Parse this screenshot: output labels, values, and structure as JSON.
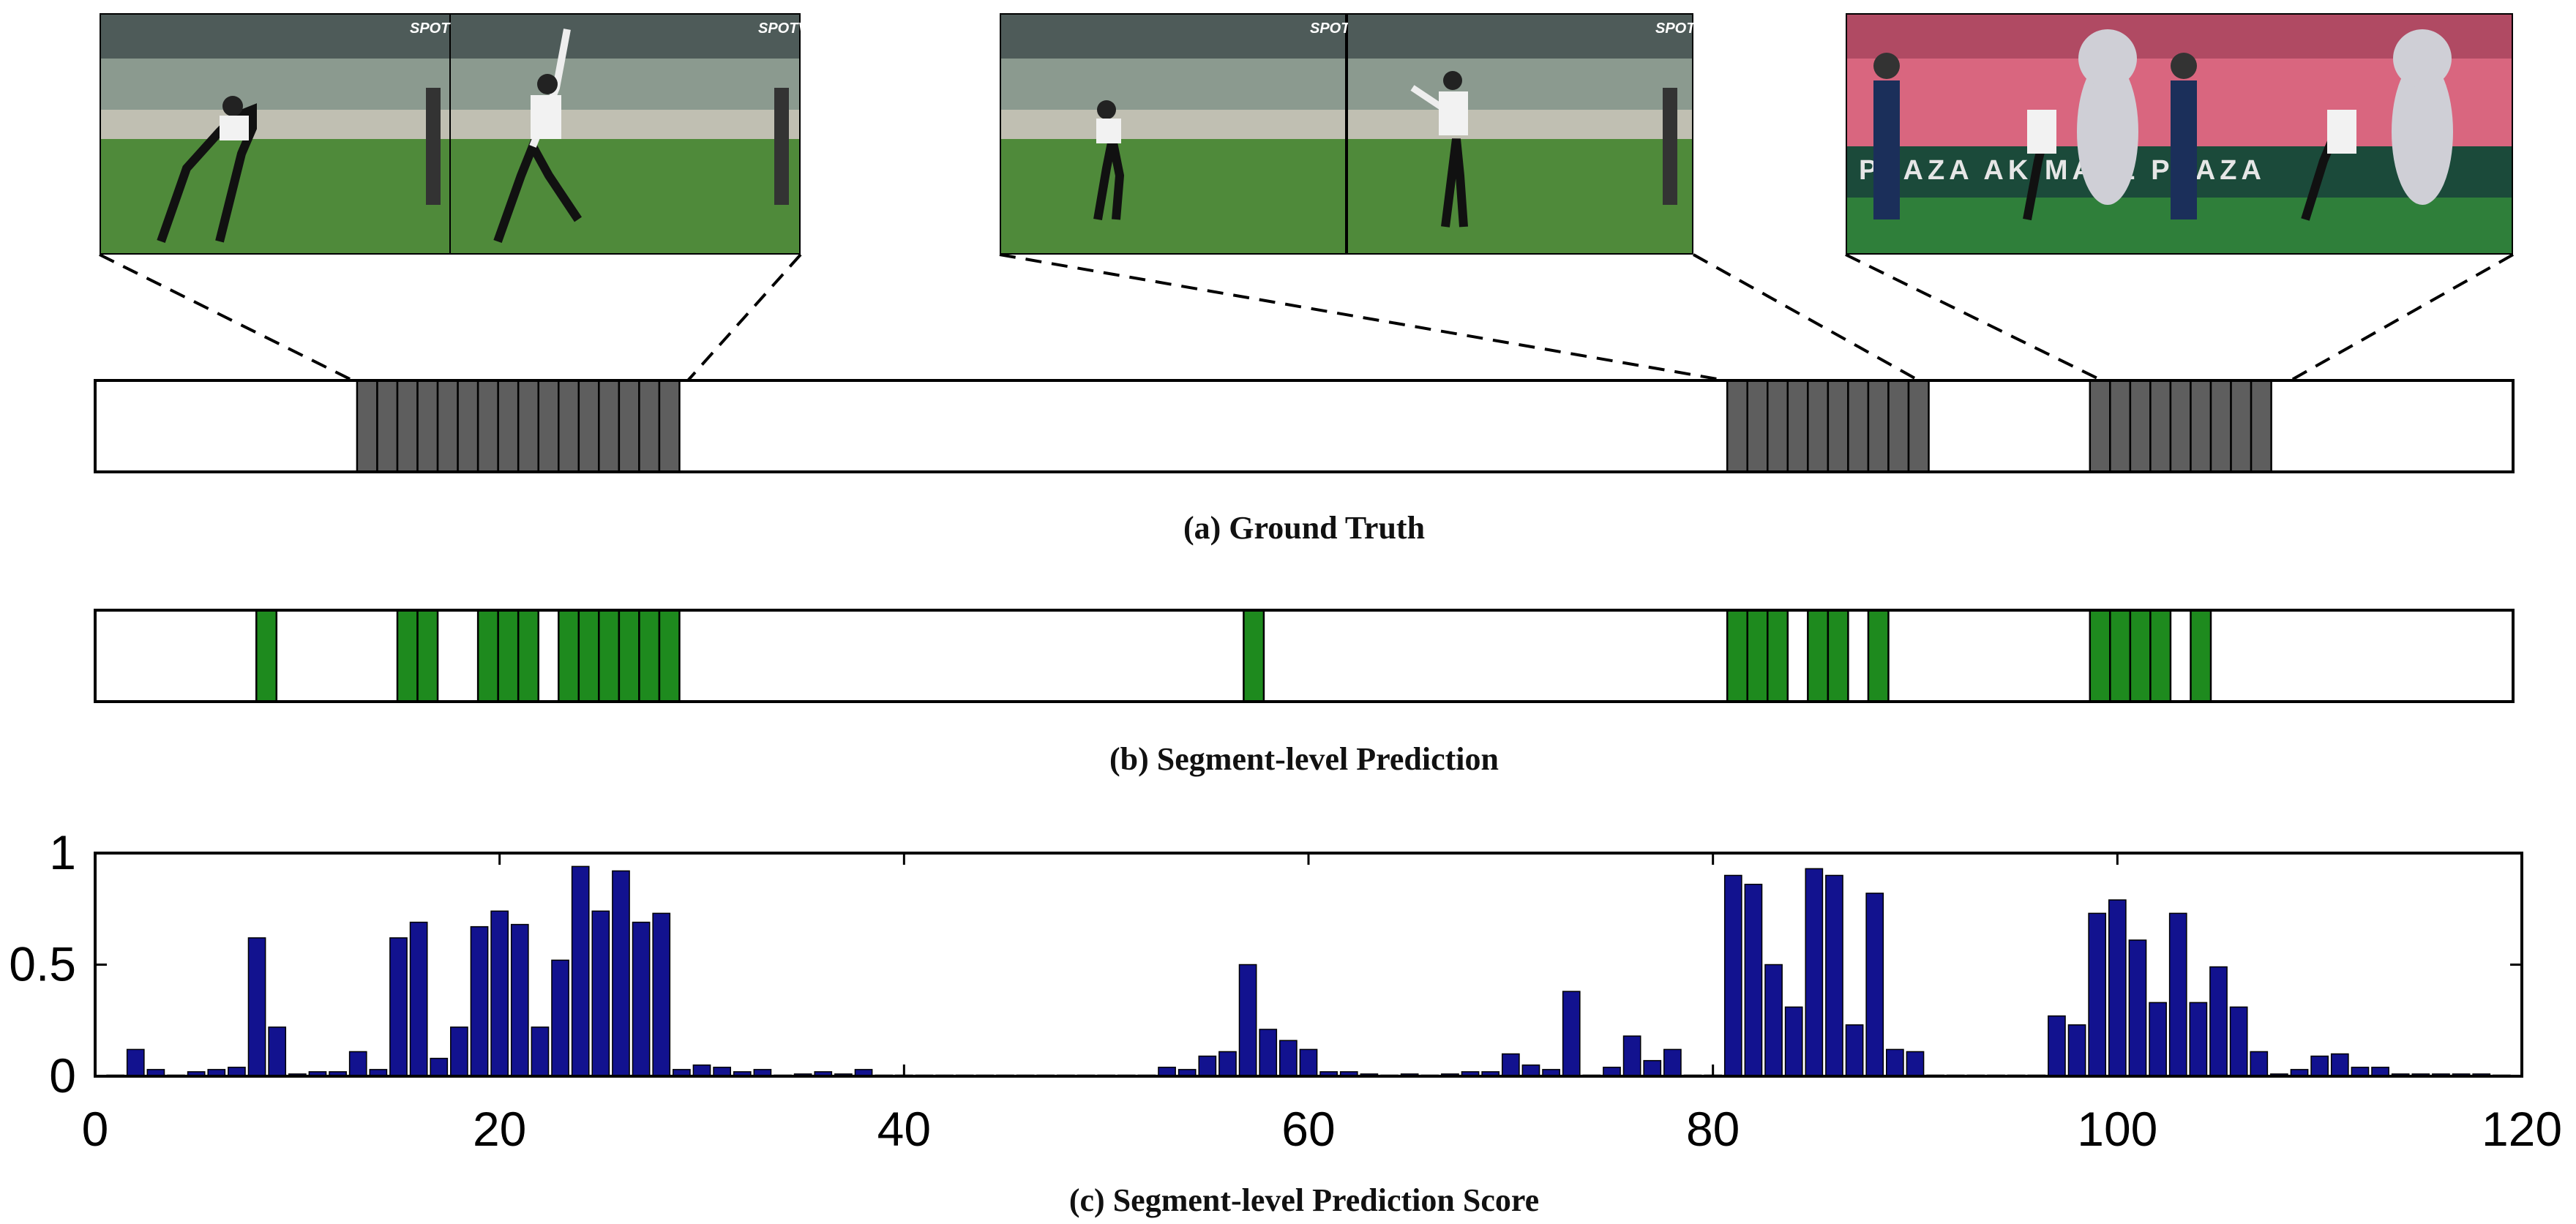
{
  "figure": {
    "caption_a": "(a) Ground Truth",
    "caption_b": "(b) Segment-level Prediction",
    "caption_c": "(c) Segment-level Prediction Score",
    "thumbnail_overlay": "SPOTV",
    "thumbnail_banner": "PLAZA   AK MALL   PLAZA"
  },
  "colors": {
    "ground_truth": "#5e5e5e",
    "prediction": "#1e8a1e",
    "score_bar": "#12128f",
    "score_edge": "#000000",
    "grass": "#4f8a3a",
    "stands": "#6f7f77",
    "stands_pink": "#d9667f"
  },
  "chart_data": [
    {
      "type": "timeline",
      "title": "(a) Ground Truth",
      "n_segments": 120,
      "positive_segments": [
        13,
        14,
        15,
        16,
        17,
        18,
        19,
        20,
        21,
        22,
        23,
        24,
        25,
        26,
        27,
        28,
        81,
        82,
        83,
        84,
        85,
        86,
        87,
        88,
        89,
        90,
        99,
        100,
        101,
        102,
        103,
        104,
        105,
        106,
        107
      ]
    },
    {
      "type": "timeline",
      "title": "(b) Segment-level Prediction",
      "n_segments": 120,
      "positive_segments": [
        8,
        15,
        16,
        19,
        20,
        21,
        23,
        24,
        25,
        26,
        27,
        28,
        57,
        81,
        82,
        83,
        85,
        86,
        88,
        99,
        100,
        101,
        102,
        104
      ]
    },
    {
      "type": "bar",
      "title": "(c) Segment-level Prediction Score",
      "x": [
        1,
        2,
        3,
        4,
        5,
        6,
        7,
        8,
        9,
        10,
        11,
        12,
        13,
        14,
        15,
        16,
        17,
        18,
        19,
        20,
        21,
        22,
        23,
        24,
        25,
        26,
        27,
        28,
        29,
        30,
        31,
        32,
        33,
        34,
        35,
        36,
        37,
        38,
        39,
        40,
        41,
        42,
        43,
        44,
        45,
        46,
        47,
        48,
        49,
        50,
        51,
        52,
        53,
        54,
        55,
        56,
        57,
        58,
        59,
        60,
        61,
        62,
        63,
        64,
        65,
        66,
        67,
        68,
        69,
        70,
        71,
        72,
        73,
        74,
        75,
        76,
        77,
        78,
        79,
        80,
        81,
        82,
        83,
        84,
        85,
        86,
        87,
        88,
        89,
        90,
        91,
        92,
        93,
        94,
        95,
        96,
        97,
        98,
        99,
        100,
        101,
        102,
        103,
        104,
        105,
        106,
        107,
        108,
        109,
        110,
        111,
        112,
        113,
        114,
        115,
        116,
        117,
        118,
        119
      ],
      "values": [
        0.0,
        0.12,
        0.03,
        0.0,
        0.02,
        0.03,
        0.04,
        0.62,
        0.22,
        0.01,
        0.02,
        0.02,
        0.11,
        0.03,
        0.62,
        0.69,
        0.08,
        0.22,
        0.67,
        0.74,
        0.68,
        0.22,
        0.52,
        0.94,
        0.74,
        0.92,
        0.69,
        0.73,
        0.03,
        0.05,
        0.04,
        0.02,
        0.03,
        0.0,
        0.01,
        0.02,
        0.01,
        0.03,
        0.0,
        0.0,
        0.0,
        0.0,
        0.0,
        0.0,
        0.0,
        0.0,
        0.0,
        0.0,
        0.0,
        0.0,
        0.0,
        0.0,
        0.04,
        0.03,
        0.09,
        0.11,
        0.5,
        0.21,
        0.16,
        0.12,
        0.02,
        0.02,
        0.01,
        0.0,
        0.01,
        0.0,
        0.01,
        0.02,
        0.02,
        0.1,
        0.05,
        0.03,
        0.38,
        0.0,
        0.04,
        0.18,
        0.07,
        0.12,
        0.0,
        0.0,
        0.9,
        0.86,
        0.5,
        0.31,
        0.93,
        0.9,
        0.23,
        0.82,
        0.12,
        0.11,
        0.0,
        0.0,
        0.0,
        0.0,
        0.0,
        0.0,
        0.27,
        0.23,
        0.73,
        0.79,
        0.61,
        0.33,
        0.73,
        0.33,
        0.49,
        0.31,
        0.11,
        0.01,
        0.03,
        0.09,
        0.1,
        0.04,
        0.04,
        0.01,
        0.01,
        0.01,
        0.01,
        0.01,
        0.0
      ],
      "xlim": [
        0,
        120
      ],
      "ylim": [
        0,
        1
      ],
      "xticks": [
        0,
        20,
        40,
        60,
        80,
        100,
        120
      ],
      "yticks": [
        0,
        0.5,
        1
      ],
      "ytick_labels": [
        "0",
        "0.5",
        "1"
      ],
      "xlabel": "",
      "ylabel": ""
    }
  ]
}
